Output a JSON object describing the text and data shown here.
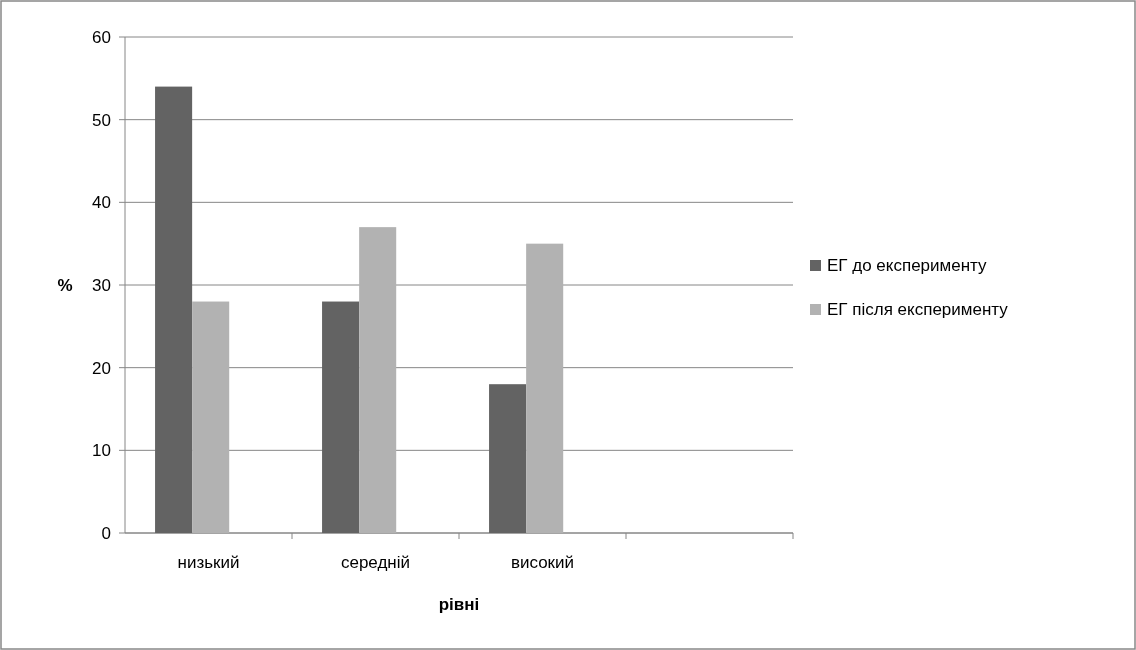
{
  "chart_data": {
    "type": "bar",
    "xlabel": "рівні",
    "ylabel": "%",
    "categories": [
      "низький",
      "середній",
      "високий",
      null
    ],
    "series": [
      {
        "name": "ЕГ до експерименту",
        "color": "#636363",
        "values": [
          54,
          28,
          18,
          null
        ]
      },
      {
        "name": "ЕГ після експерименту",
        "color": "#b2b2b2",
        "values": [
          28,
          37,
          35,
          null
        ]
      }
    ],
    "ylim": [
      0,
      60
    ],
    "yticks": [
      0,
      10,
      20,
      30,
      40,
      50,
      60
    ],
    "grid": "y",
    "legend": "right"
  }
}
